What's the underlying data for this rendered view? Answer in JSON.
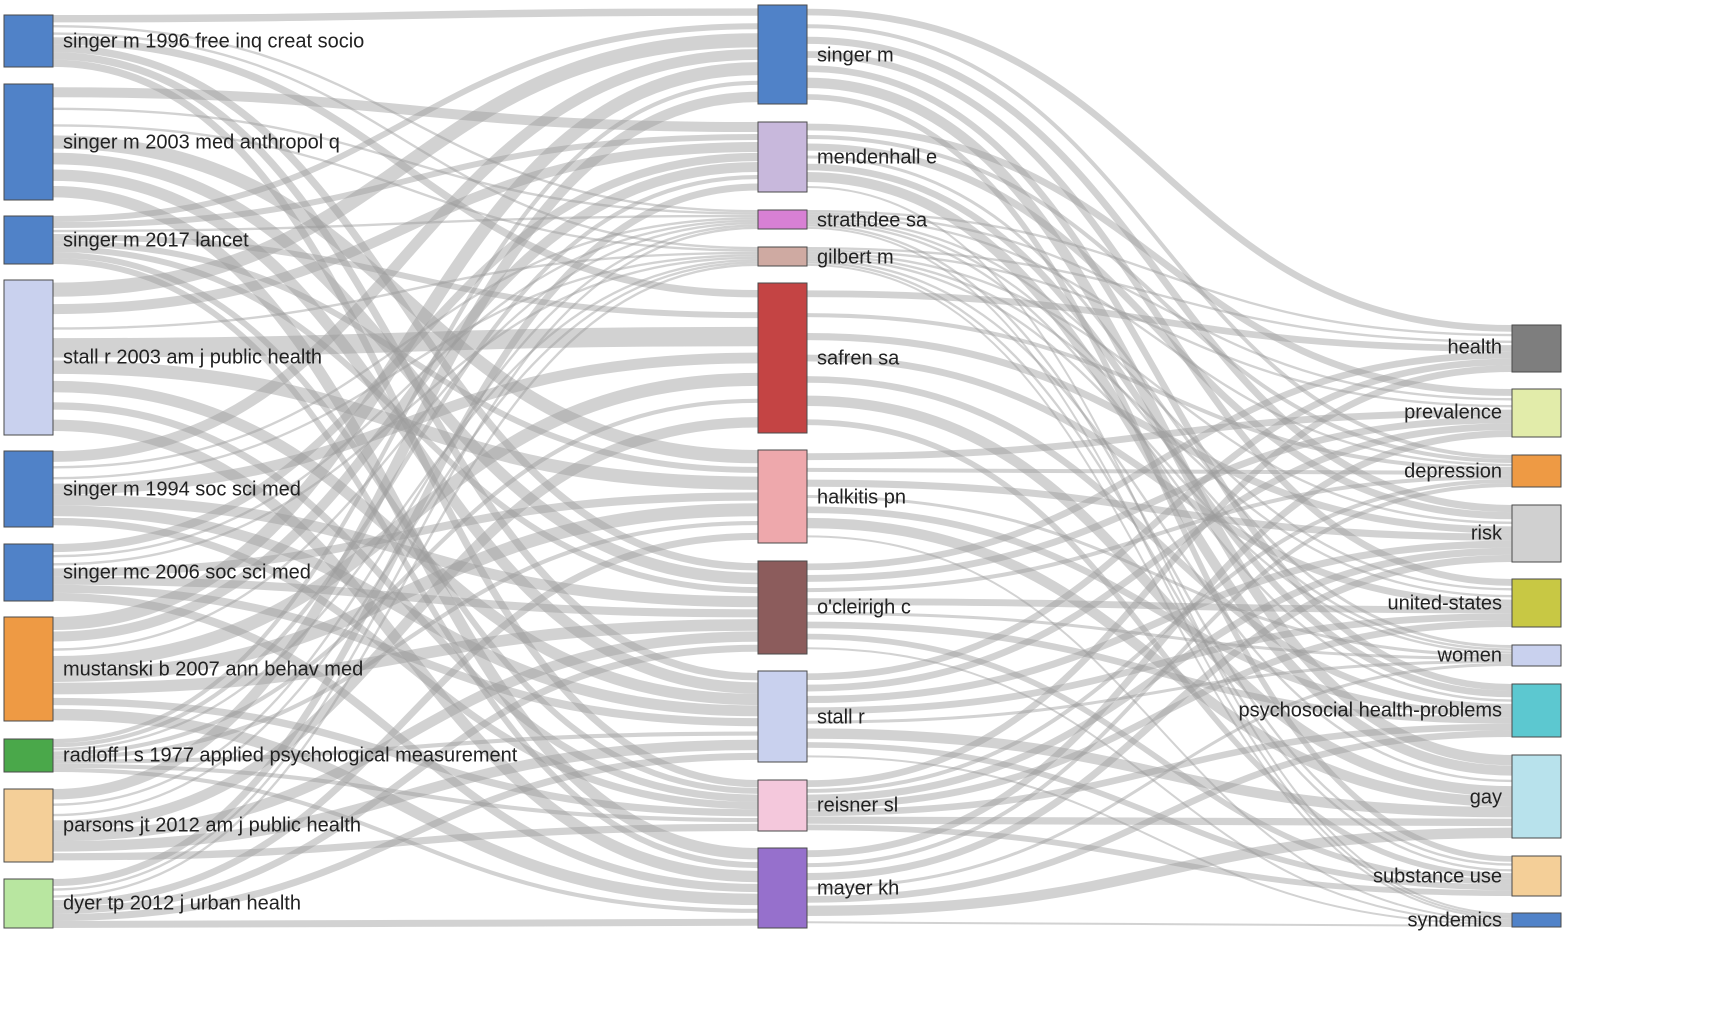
{
  "diagram": {
    "columns": [
      {
        "id": "references",
        "nodes": [
          {
            "id": "r1",
            "label": "singer m 1996 free inq creat socio",
            "color": "#5082c8"
          },
          {
            "id": "r2",
            "label": "singer m 2003 med anthropol q",
            "color": "#5082c8"
          },
          {
            "id": "r3",
            "label": "singer m 2017 lancet",
            "color": "#5082c8"
          },
          {
            "id": "r4",
            "label": "stall r 2003 am j public health",
            "color": "#c9d1ee"
          },
          {
            "id": "r5",
            "label": "singer m 1994 soc sci med",
            "color": "#5082c8"
          },
          {
            "id": "r6",
            "label": "singer mc 2006 soc sci med",
            "color": "#5082c8"
          },
          {
            "id": "r7",
            "label": "mustanski b 2007 ann behav med",
            "color": "#ee9a44"
          },
          {
            "id": "r8",
            "label": "radloff l s 1977 applied psychological measurement",
            "color": "#4aa84a"
          },
          {
            "id": "r9",
            "label": "parsons jt 2012 am j public health",
            "color": "#f4cf98"
          },
          {
            "id": "r10",
            "label": "dyer tp 2012 j urban health",
            "color": "#b8e6a0"
          }
        ]
      },
      {
        "id": "authors",
        "nodes": [
          {
            "id": "a1",
            "label": "singer m",
            "color": "#5082c8"
          },
          {
            "id": "a2",
            "label": "mendenhall e",
            "color": "#c8b8dc"
          },
          {
            "id": "a3",
            "label": "strathdee sa",
            "color": "#d880d4"
          },
          {
            "id": "a4",
            "label": "gilbert m",
            "color": "#cfaaa2"
          },
          {
            "id": "a5",
            "label": "safren sa",
            "color": "#c44444"
          },
          {
            "id": "a6",
            "label": "halkitis pn",
            "color": "#eea8ac"
          },
          {
            "id": "a7",
            "label": "o'cleirigh c",
            "color": "#8c5c5c"
          },
          {
            "id": "a8",
            "label": "stall r",
            "color": "#c9d1ee"
          },
          {
            "id": "a9",
            "label": "reisner sl",
            "color": "#f4c8dc"
          },
          {
            "id": "a10",
            "label": "mayer kh",
            "color": "#9670cc"
          }
        ]
      },
      {
        "id": "keywords",
        "nodes": [
          {
            "id": "k1",
            "label": "health",
            "color": "#7e7e7e"
          },
          {
            "id": "k2",
            "label": "prevalence",
            "color": "#e2ecaa"
          },
          {
            "id": "k3",
            "label": "depression",
            "color": "#ee9a44"
          },
          {
            "id": "k4",
            "label": "risk",
            "color": "#d0d0d0"
          },
          {
            "id": "k5",
            "label": "united-states",
            "color": "#c8c844"
          },
          {
            "id": "k6",
            "label": "women",
            "color": "#c9d1ee"
          },
          {
            "id": "k7",
            "label": "psychosocial health-problems",
            "color": "#5cc8d0"
          },
          {
            "id": "k8",
            "label": "gay",
            "color": "#b8e2ec"
          },
          {
            "id": "k9",
            "label": "substance use",
            "color": "#f4cf98"
          },
          {
            "id": "k10",
            "label": "syndemics",
            "color": "#5082c8"
          }
        ]
      }
    ]
  }
}
